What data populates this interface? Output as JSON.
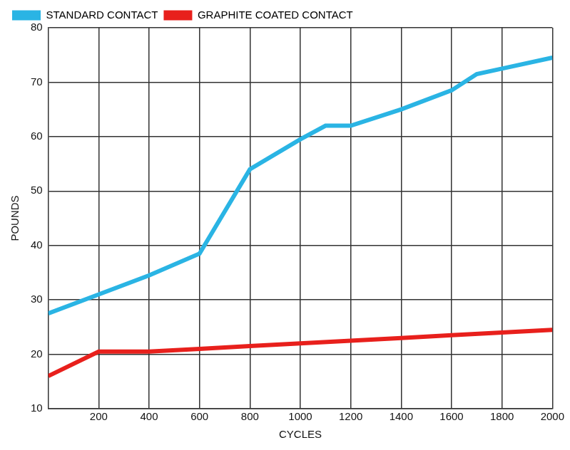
{
  "chart_data": {
    "type": "line",
    "x_label": "CYCLES",
    "y_label": "POUNDS",
    "series": [
      {
        "name": "STANDARD CONTACT",
        "color": "#2ab4e4",
        "x": [
          0,
          200,
          400,
          600,
          800,
          1000,
          1100,
          1200,
          1400,
          1600,
          1700,
          1800,
          2000
        ],
        "values": [
          27.5,
          31,
          34.5,
          38.5,
          54,
          59.5,
          62,
          62,
          65,
          68.5,
          71.5,
          72.5,
          74.5
        ]
      },
      {
        "name": "GRAPHITE COATED CONTACT",
        "color": "#e8201c",
        "x": [
          0,
          200,
          400,
          600,
          800,
          1000,
          1200,
          1400,
          1600,
          1800,
          2000
        ],
        "values": [
          16,
          20.5,
          20.5,
          21,
          21.5,
          22,
          22.5,
          23,
          23.5,
          24,
          24.5
        ]
      }
    ],
    "xlim": [
      0,
      2000
    ],
    "xticks": [
      200,
      400,
      600,
      800,
      1000,
      1200,
      1400,
      1600,
      1800,
      2000
    ],
    "ylim": [
      10,
      80
    ],
    "yticks": [
      10,
      20,
      30,
      40,
      50,
      60,
      70,
      80
    ],
    "grid": true,
    "legend": "top-left"
  }
}
